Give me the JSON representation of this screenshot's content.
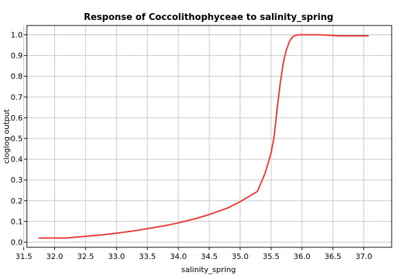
{
  "chart_data": {
    "type": "line",
    "title": "Response of Coccolithophyceae to salinity_spring",
    "xlabel": "salinity_spring",
    "ylabel": "cloglog output",
    "xlim": [
      31.55,
      37.45
    ],
    "ylim": [
      -0.025,
      1.045
    ],
    "grid": true,
    "colors": {
      "line": "#ee3333",
      "grid": "#c4c4c4",
      "axis": "#000000",
      "background": "#ffffff"
    },
    "x_ticks": [
      {
        "value": 31.5,
        "label": "31.5"
      },
      {
        "value": 32.0,
        "label": "32.0"
      },
      {
        "value": 32.5,
        "label": "32.5"
      },
      {
        "value": 33.0,
        "label": "33.0"
      },
      {
        "value": 33.5,
        "label": "33.5"
      },
      {
        "value": 34.0,
        "label": "34.0"
      },
      {
        "value": 34.5,
        "label": "34.5"
      },
      {
        "value": 35.0,
        "label": "35.0"
      },
      {
        "value": 35.5,
        "label": "35.5"
      },
      {
        "value": 36.0,
        "label": "36.0"
      },
      {
        "value": 36.5,
        "label": "36.5"
      },
      {
        "value": 37.0,
        "label": "37.0"
      }
    ],
    "y_ticks": [
      {
        "value": 0.0,
        "label": "0.0"
      },
      {
        "value": 0.1,
        "label": "0.1"
      },
      {
        "value": 0.2,
        "label": "0.2"
      },
      {
        "value": 0.3,
        "label": "0.3"
      },
      {
        "value": 0.4,
        "label": "0.4"
      },
      {
        "value": 0.5,
        "label": "0.5"
      },
      {
        "value": 0.6,
        "label": "0.6"
      },
      {
        "value": 0.7,
        "label": "0.7"
      },
      {
        "value": 0.8,
        "label": "0.8"
      },
      {
        "value": 0.9,
        "label": "0.9"
      },
      {
        "value": 1.0,
        "label": "1.0"
      }
    ],
    "series": [
      {
        "x": [
          31.75,
          32.0,
          32.2,
          32.5,
          32.8,
          33.0,
          33.3,
          33.5,
          33.8,
          34.0,
          34.3,
          34.5,
          34.8,
          35.0,
          35.15,
          35.28,
          35.4,
          35.5,
          35.55,
          35.6,
          35.65,
          35.7,
          35.75,
          35.8,
          35.85,
          35.9,
          35.95,
          36.0,
          36.1,
          36.3,
          36.4,
          36.5,
          36.6,
          37.07
        ],
        "y": [
          0.02,
          0.02,
          0.02,
          0.028,
          0.036,
          0.043,
          0.055,
          0.065,
          0.08,
          0.093,
          0.115,
          0.133,
          0.165,
          0.195,
          0.222,
          0.245,
          0.33,
          0.43,
          0.51,
          0.65,
          0.77,
          0.87,
          0.93,
          0.97,
          0.99,
          0.998,
          1.0,
          1.0,
          1.0,
          1.0,
          0.998,
          0.997,
          0.995,
          0.995
        ]
      }
    ]
  }
}
